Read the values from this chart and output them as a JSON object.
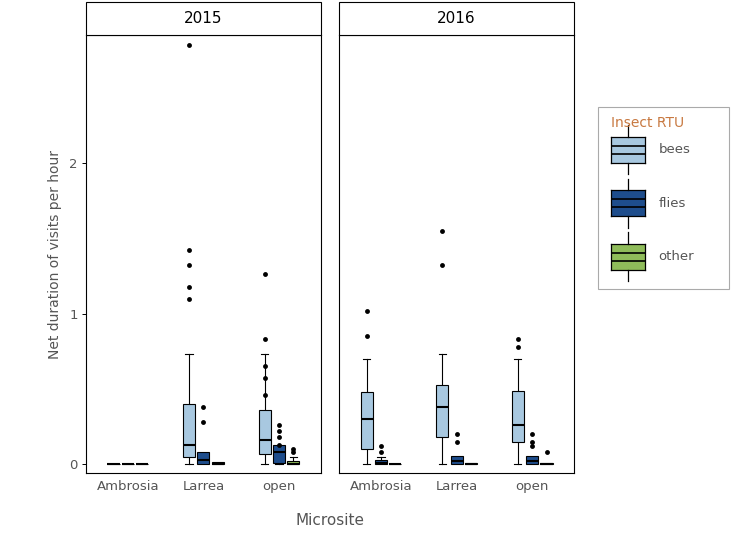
{
  "ylabel": "Net duration of visits per hour",
  "xlabel": "Microsite",
  "legend_title": "Insect RTU",
  "facets": [
    "2015",
    "2016"
  ],
  "microsites": [
    "Ambrosia",
    "Larrea",
    "open"
  ],
  "insect_types": [
    "bees",
    "flies",
    "other"
  ],
  "colors": {
    "bees": "#a8c8e0",
    "flies": "#1e4d8c",
    "other": "#8fbc5a"
  },
  "ylim": [
    -0.06,
    2.85
  ],
  "yticks": [
    0.0,
    1.0,
    2.0
  ],
  "box_data": {
    "2015": {
      "Ambrosia": {
        "bees": {
          "q1": 0.0,
          "median": 0.0,
          "q3": 0.0,
          "whislo": 0.0,
          "whishi": 0.0,
          "fliers": []
        },
        "flies": {
          "q1": 0.0,
          "median": 0.0,
          "q3": 0.0,
          "whislo": 0.0,
          "whishi": 0.0,
          "fliers": []
        },
        "other": {
          "q1": 0.0,
          "median": 0.0,
          "q3": 0.0,
          "whislo": 0.0,
          "whishi": 0.0,
          "fliers": []
        }
      },
      "Larrea": {
        "bees": {
          "q1": 0.05,
          "median": 0.13,
          "q3": 0.4,
          "whislo": 0.0,
          "whishi": 0.73,
          "fliers": [
            2.78,
            1.42,
            1.32,
            1.18,
            1.1
          ]
        },
        "flies": {
          "q1": 0.0,
          "median": 0.03,
          "q3": 0.08,
          "whislo": 0.0,
          "whishi": 0.08,
          "fliers": [
            0.38,
            0.28
          ]
        },
        "other": {
          "q1": 0.0,
          "median": 0.0,
          "q3": 0.015,
          "whislo": 0.0,
          "whishi": 0.015,
          "fliers": []
        }
      },
      "open": {
        "bees": {
          "q1": 0.07,
          "median": 0.16,
          "q3": 0.36,
          "whislo": 0.0,
          "whishi": 0.73,
          "fliers": [
            1.26,
            0.83,
            0.65,
            0.57,
            0.46
          ]
        },
        "flies": {
          "q1": 0.01,
          "median": 0.08,
          "q3": 0.13,
          "whislo": 0.0,
          "whishi": 0.13,
          "fliers": [
            0.26,
            0.22,
            0.18,
            0.13
          ]
        },
        "other": {
          "q1": 0.0,
          "median": 0.0,
          "q3": 0.02,
          "whislo": 0.0,
          "whishi": 0.05,
          "fliers": [
            0.1,
            0.08
          ]
        }
      }
    },
    "2016": {
      "Ambrosia": {
        "bees": {
          "q1": 0.1,
          "median": 0.3,
          "q3": 0.48,
          "whislo": 0.0,
          "whishi": 0.7,
          "fliers": [
            0.85,
            1.02
          ]
        },
        "flies": {
          "q1": 0.0,
          "median": 0.01,
          "q3": 0.03,
          "whislo": 0.0,
          "whishi": 0.05,
          "fliers": [
            0.12,
            0.08
          ]
        },
        "other": {
          "q1": 0.0,
          "median": 0.0,
          "q3": 0.0,
          "whislo": 0.0,
          "whishi": 0.0,
          "fliers": []
        }
      },
      "Larrea": {
        "bees": {
          "q1": 0.18,
          "median": 0.38,
          "q3": 0.53,
          "whislo": 0.0,
          "whishi": 0.73,
          "fliers": [
            1.55,
            1.32
          ]
        },
        "flies": {
          "q1": 0.0,
          "median": 0.02,
          "q3": 0.055,
          "whislo": 0.0,
          "whishi": 0.055,
          "fliers": [
            0.2,
            0.15
          ]
        },
        "other": {
          "q1": 0.0,
          "median": 0.0,
          "q3": 0.01,
          "whislo": 0.0,
          "whishi": 0.01,
          "fliers": []
        }
      },
      "open": {
        "bees": {
          "q1": 0.15,
          "median": 0.26,
          "q3": 0.49,
          "whislo": 0.0,
          "whishi": 0.7,
          "fliers": [
            0.83,
            0.78
          ]
        },
        "flies": {
          "q1": 0.0,
          "median": 0.02,
          "q3": 0.055,
          "whislo": 0.0,
          "whishi": 0.055,
          "fliers": [
            0.2,
            0.15,
            0.12
          ]
        },
        "other": {
          "q1": 0.0,
          "median": 0.0,
          "q3": 0.01,
          "whislo": 0.0,
          "whishi": 0.01,
          "fliers": [
            0.08
          ]
        }
      }
    }
  },
  "background": "#ffffff",
  "text_color": "#555555",
  "legend_title_color": "#c87941",
  "strip_bg": "#ffffff",
  "axis_lw": 0.8,
  "box_width": 0.16,
  "offsets": [
    -0.19,
    0.0,
    0.19
  ]
}
